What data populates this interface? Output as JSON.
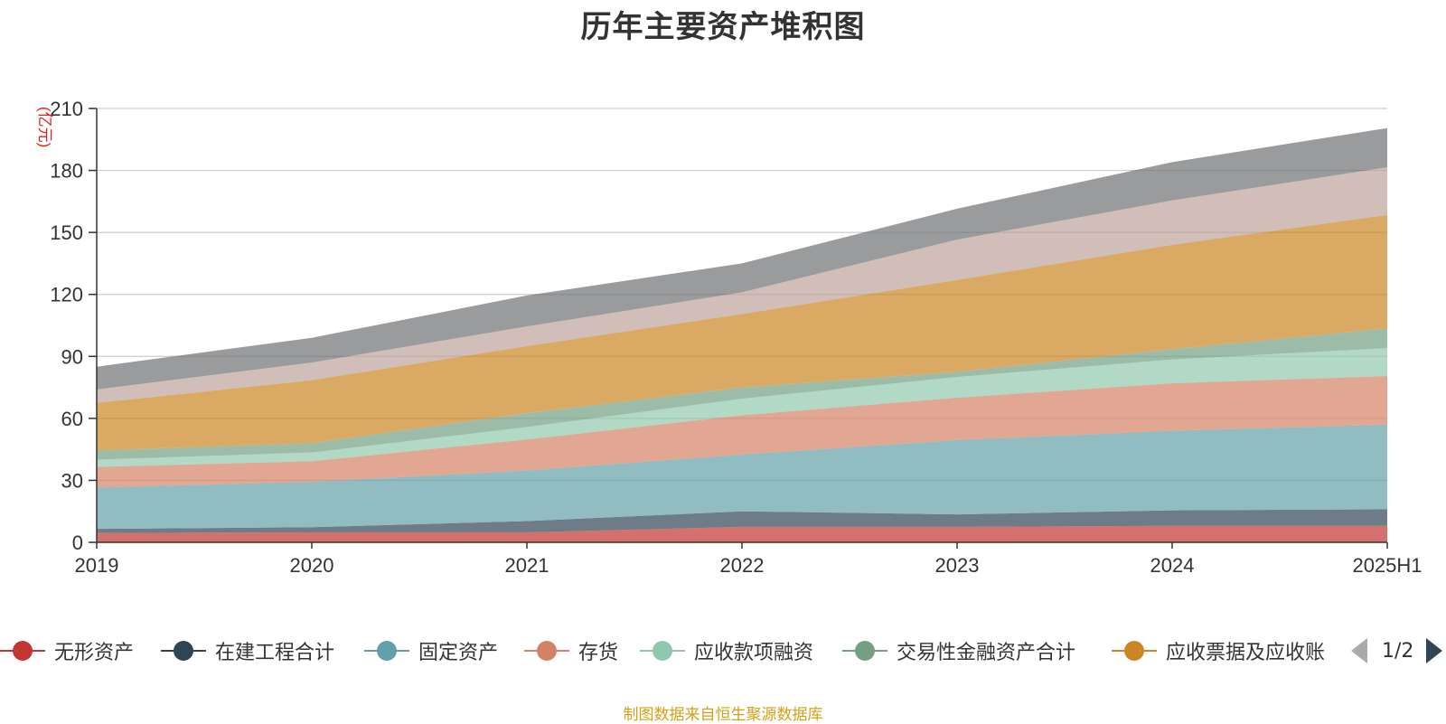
{
  "chart_data": {
    "type": "area",
    "title": "历年主要资产堆积图",
    "unit_label": "(亿元)",
    "categories": [
      "2019",
      "2020",
      "2021",
      "2022",
      "2023",
      "2024",
      "2025H1"
    ],
    "ylim": [
      0,
      210
    ],
    "yticks": [
      0,
      30,
      60,
      90,
      120,
      150,
      180,
      210
    ],
    "grid": true,
    "legend_position": "bottom",
    "series": [
      {
        "name": "无形资产",
        "color": "#c23531",
        "values": [
          4.5,
          4.8,
          4.8,
          7.5,
          7.5,
          8,
          8
        ]
      },
      {
        "name": "在建工程合计",
        "color": "#2f4554",
        "values": [
          2,
          2.5,
          5.5,
          7.5,
          6,
          7.5,
          8
        ]
      },
      {
        "name": "固定资产",
        "color": "#61a0a8",
        "values": [
          20,
          22,
          24.5,
          27.5,
          36,
          38.5,
          41
        ]
      },
      {
        "name": "存货",
        "color": "#d48265",
        "values": [
          10,
          10,
          15,
          19,
          20.5,
          23,
          23.5
        ]
      },
      {
        "name": "应收款项融资",
        "color": "#91c7ae",
        "values": [
          3.5,
          4.2,
          6,
          8,
          10,
          11.5,
          13.5
        ]
      },
      {
        "name": "交易性金融资产合计",
        "color": "#749f83",
        "values": [
          4.5,
          4.5,
          6.7,
          5.5,
          2.5,
          5,
          9.5
        ]
      },
      {
        "name": "应收票据及应收账",
        "color": "#ca8622",
        "values": [
          23,
          30.5,
          32.5,
          35.5,
          44.5,
          50.5,
          55
        ]
      },
      {
        "name": "",
        "color": "#bda29a",
        "values": [
          6.5,
          8.5,
          9.5,
          10.5,
          19.5,
          21.5,
          23
        ]
      },
      {
        "name": "",
        "color": "#6e7074",
        "values": [
          11,
          12,
          15,
          14,
          15,
          18.5,
          19
        ]
      }
    ]
  },
  "legend_items": [
    "无形资产",
    "在建工程合计",
    "固定资产",
    "存货",
    "应收款项融资",
    "交易性金融资产合计",
    "应收票据及应收账"
  ],
  "pager": {
    "text": "1/2"
  },
  "source": "制图数据来自恒生聚源数据库"
}
